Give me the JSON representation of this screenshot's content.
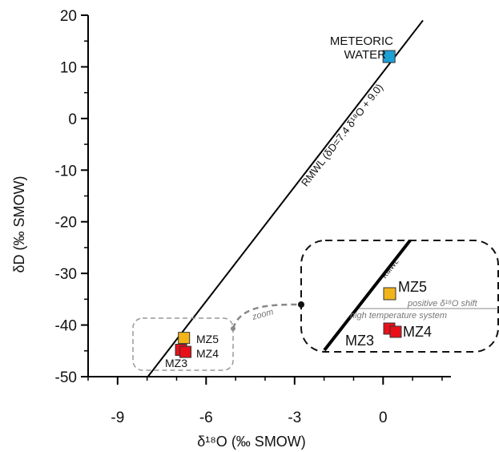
{
  "chart_data": {
    "type": "scatter",
    "xlabel": "δ¹⁸O (‰ SMOW)",
    "ylabel": "δD (‰ SMOW)",
    "xlim": [
      -10,
      2.3
    ],
    "ylim": [
      -50,
      20
    ],
    "x_ticks": [
      -9,
      -6,
      -3,
      0
    ],
    "y_ticks": [
      20,
      10,
      0,
      -10,
      -20,
      -30,
      -40,
      -50
    ],
    "grid": false,
    "points": [
      {
        "label": "METEORIC WATER",
        "x": 0.2,
        "y": 12.0,
        "color": "#1ba1d6"
      },
      {
        "label": "MZ5",
        "x": -6.75,
        "y": -42.5,
        "color": "#f2b41b"
      },
      {
        "label": "MZ3",
        "x": -6.85,
        "y": -44.8,
        "color": "#e8111a"
      },
      {
        "label": "MZ4",
        "x": -6.7,
        "y": -45.2,
        "color": "#e8111a"
      }
    ],
    "lines": [
      {
        "name": "RMWL (δD=7.4 δ¹⁸O + 9.0)",
        "slope": 7.4,
        "intercept": 9.0
      }
    ],
    "annotations": {
      "zoom": "zoom",
      "inset_line_label": "RMWL",
      "shift_text_1": "positive δ¹⁸O shift",
      "shift_text_2": "high temperature system"
    },
    "inset_points": [
      {
        "label": "MZ5",
        "color": "#f2b41b"
      },
      {
        "label": "MZ3",
        "color": "#e8111a"
      },
      {
        "label": "MZ4",
        "color": "#e8111a"
      }
    ]
  }
}
